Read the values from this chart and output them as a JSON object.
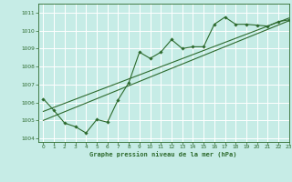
{
  "title": "Graphe pression niveau de la mer (hPa)",
  "bg_color": "#c6ece6",
  "grid_color": "#ffffff",
  "line_color": "#2d6a2d",
  "xlim": [
    -0.5,
    23
  ],
  "ylim": [
    1003.8,
    1011.5
  ],
  "yticks": [
    1004,
    1005,
    1006,
    1007,
    1008,
    1009,
    1010,
    1011
  ],
  "xticks": [
    0,
    1,
    2,
    3,
    4,
    5,
    6,
    7,
    8,
    9,
    10,
    11,
    12,
    13,
    14,
    15,
    16,
    17,
    18,
    19,
    20,
    21,
    22,
    23
  ],
  "series1_x": [
    0,
    1,
    2,
    3,
    4,
    5,
    6,
    7,
    8,
    9,
    10,
    11,
    12,
    13,
    14,
    15,
    16,
    17,
    18,
    19,
    20,
    21,
    22,
    23
  ],
  "series1_y": [
    1006.2,
    1005.55,
    1004.85,
    1004.65,
    1004.3,
    1005.05,
    1004.9,
    1006.15,
    1007.1,
    1008.8,
    1008.45,
    1008.8,
    1009.5,
    1009.0,
    1009.1,
    1009.1,
    1010.35,
    1010.75,
    1010.35,
    1010.35,
    1010.3,
    1010.25,
    1010.5,
    1010.6
  ],
  "series2_x": [
    0,
    23
  ],
  "series2_y": [
    1005.5,
    1010.7
  ],
  "series3_x": [
    0,
    23
  ],
  "series3_y": [
    1005.0,
    1010.55
  ]
}
